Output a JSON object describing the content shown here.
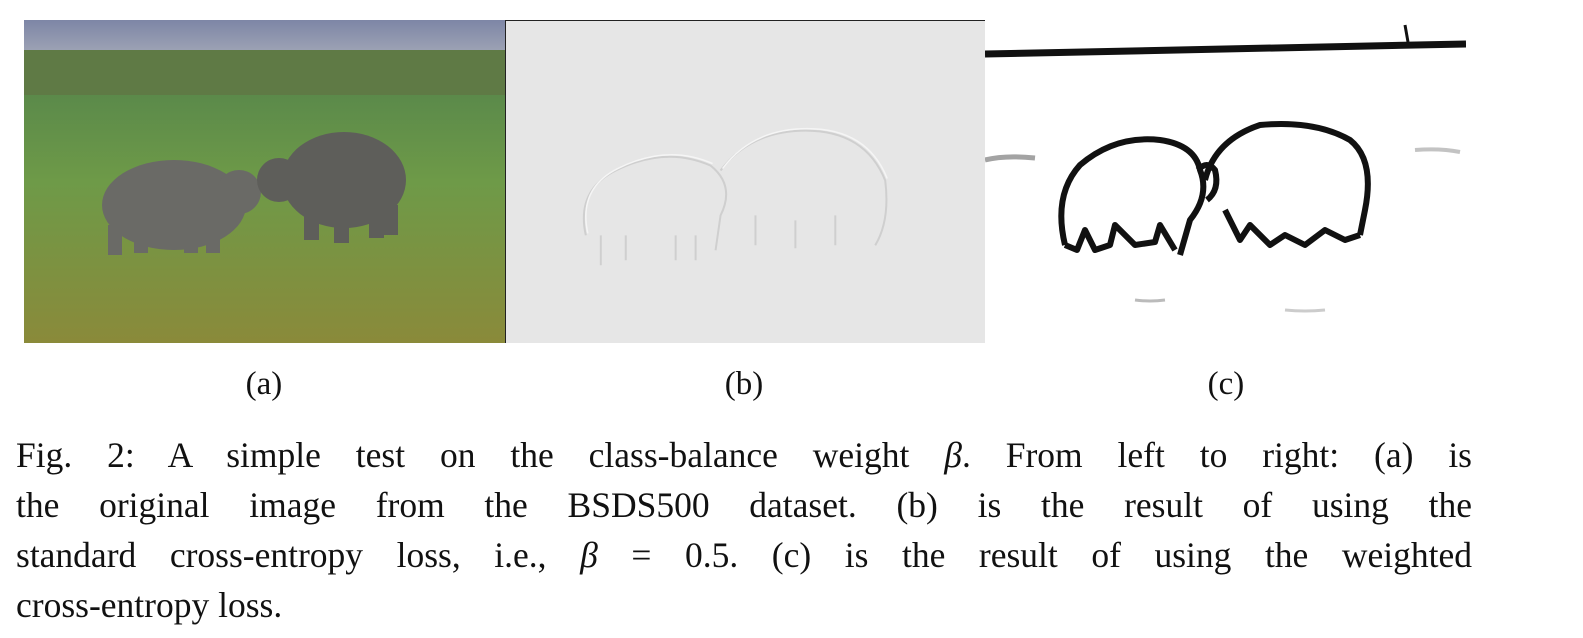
{
  "panels": [
    {
      "id": "a",
      "label": "(a)",
      "description": "rhinos-photo"
    },
    {
      "id": "b",
      "label": "(b)",
      "description": "embossed-edge-result"
    },
    {
      "id": "c",
      "label": "(c)",
      "description": "weighted-edge-map"
    }
  ],
  "caption": {
    "line1_prefix": "Fig. 2: A simple test on the class-balance weight",
    "line1_beta": "β",
    "line1_suffix": ". From left to right: (a) is",
    "line2": "the original image from the BSDS500 dataset. (b) is the result of using the",
    "line3_prefix": "standard cross-entropy loss, i.e.,",
    "line3_beta": "β",
    "line3_eq": " = 0.5. (c) is the result of using the weighted",
    "line4": "cross-entropy loss."
  },
  "colors": {
    "sky": "#8a90a8",
    "grass": "#6f8a3e",
    "rhino": "#6a6a66",
    "panel_b_bg": "#e6e6e6",
    "edge": "#111111"
  }
}
